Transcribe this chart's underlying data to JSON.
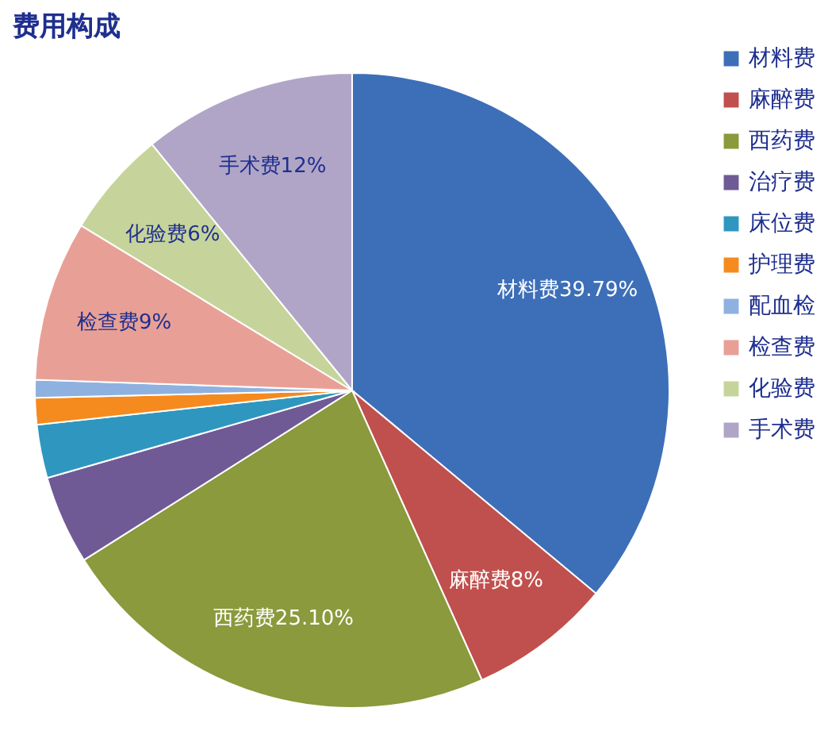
{
  "chart_data": {
    "type": "pie",
    "title": "费用构成",
    "categories": [
      "材料费",
      "麻醉费",
      "西药费",
      "治疗费",
      "床位费",
      "护理费",
      "配血检",
      "检查费",
      "化验费",
      "手术费"
    ],
    "values": [
      39.79,
      8,
      25.1,
      5,
      3,
      1.5,
      1,
      9,
      6,
      12
    ],
    "value_labels": [
      "材料费39.79%",
      "麻醉费8%",
      "西药费25.10%",
      null,
      null,
      null,
      null,
      "检查费9%",
      "化验费6%",
      "手术费12%"
    ],
    "colors": [
      "#3d6fb8",
      "#c0504d",
      "#8a9a3c",
      "#6f5a96",
      "#2f97bf",
      "#f58a1f",
      "#8eb1e0",
      "#e8a096",
      "#c6d49b",
      "#b0a5c6"
    ],
    "legend": "right"
  }
}
